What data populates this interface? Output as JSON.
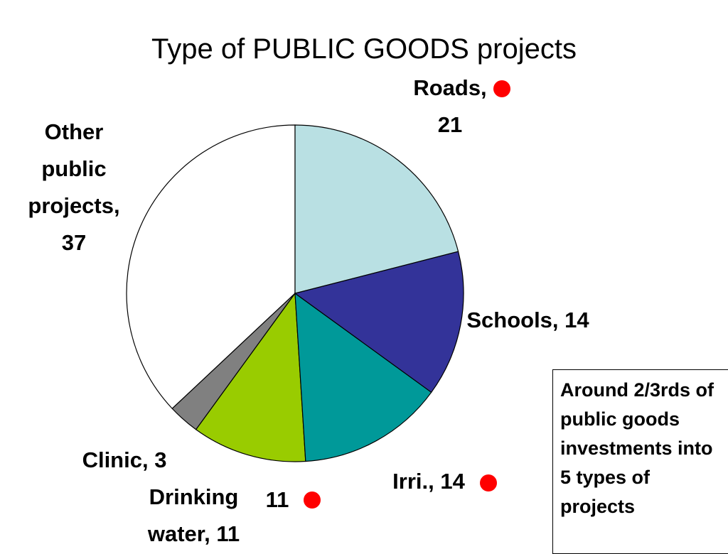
{
  "chart_data": {
    "type": "pie",
    "title": "Type of PUBLIC GOODS projects",
    "values": [
      21,
      14,
      14,
      11,
      3,
      37
    ],
    "value_labels": [
      "Roads, 21",
      "Schools, 14",
      "Irri., 14",
      "Drinking water, 11",
      "Clinic, 3",
      "Other public projects, 37"
    ],
    "colors": [
      "#b9e0e3",
      "#333399",
      "#009999",
      "#99cc00",
      "#808080",
      "#ffffff"
    ],
    "annotations": [
      "11"
    ],
    "note": "Around 2/3rds of public goods investments into 5 types of projects"
  }
}
